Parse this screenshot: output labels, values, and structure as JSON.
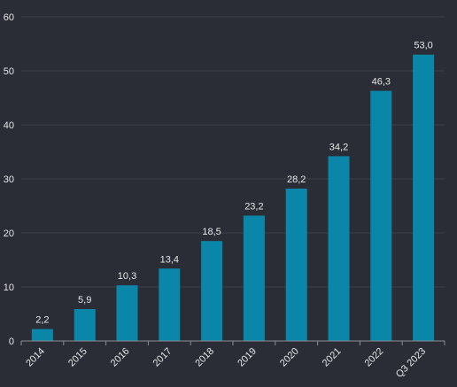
{
  "chart_data": {
    "type": "bar",
    "categories": [
      "2014",
      "2015",
      "2016",
      "2017",
      "2018",
      "2019",
      "2020",
      "2021",
      "2022",
      "Q3 2023"
    ],
    "values": [
      2.2,
      5.9,
      10.3,
      13.4,
      18.5,
      23.2,
      28.2,
      34.2,
      46.3,
      53.0
    ],
    "value_labels": [
      "2,2",
      "5,9",
      "10,3",
      "13,4",
      "18,5",
      "23,2",
      "28,2",
      "34,2",
      "46,3",
      "53,0"
    ],
    "y_ticks": [
      0,
      10,
      20,
      30,
      40,
      50,
      60
    ],
    "ylim": [
      0,
      60
    ],
    "grid": true,
    "title": "",
    "xlabel": "",
    "ylabel": "",
    "colors": {
      "background": "#2a2d36",
      "bar": "#0a87a8",
      "grid": "#3d414b",
      "axis": "#8a8e96",
      "text": "#e6e6e6"
    }
  }
}
